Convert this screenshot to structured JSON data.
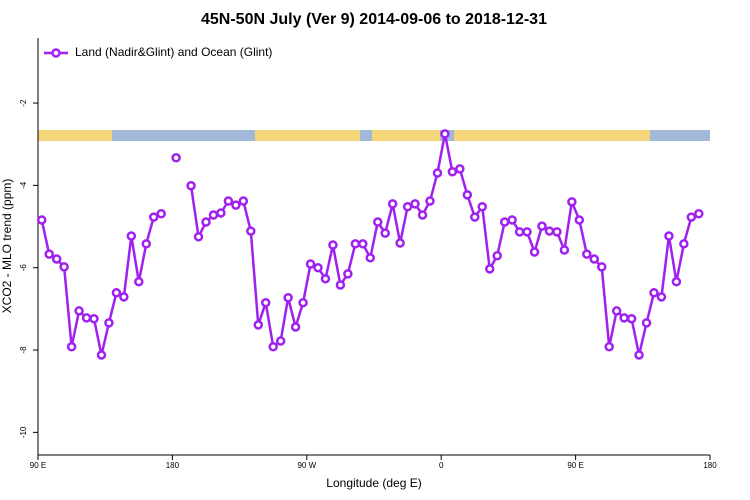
{
  "chart_data": {
    "type": "line",
    "title": "45N-50N July (Ver 9)   2014-09-06 to 2018-12-31",
    "x_label": "Longitude (deg E)",
    "y_label": "XCO2 - MLO trend (ppm)",
    "x": [
      92.5,
      97.5,
      102.5,
      107.5,
      112.5,
      117.5,
      122.5,
      127.5,
      132.5,
      137.5,
      142.5,
      147.5,
      152.5,
      157.5,
      162.5,
      167.5,
      172.5,
      177.5,
      182.5,
      187.5,
      192.5,
      197.5,
      202.5,
      207.5,
      212.5,
      217.5,
      222.5,
      227.5,
      232.5,
      237.5,
      242.5,
      247.5,
      252.5,
      257.5,
      262.5,
      267.5,
      272.5,
      277.5,
      282.5,
      287.5,
      292.5,
      297.5,
      302.5,
      307.5,
      312.5,
      317.5,
      322.5,
      327.5,
      332.5,
      337.5,
      342.5,
      347.5,
      352.5,
      357.5,
      362.5,
      367.5,
      372.5,
      377.5,
      382.5,
      387.5,
      392.5,
      397.5,
      402.5,
      407.5,
      412.5,
      417.5,
      422.5,
      427.5,
      432.5,
      437.5,
      442.5,
      447.5,
      452.5,
      457.5,
      462.5,
      467.5,
      472.5,
      477.5,
      482.5,
      487.5,
      492.5,
      497.5,
      502.5,
      507.5,
      512.5,
      517.5,
      522.5,
      527.5,
      532.5
    ],
    "series": [
      {
        "name": "Land (Nadir&Glint) and Ocean (Glint)",
        "color": "#a020f0",
        "values": [
          -4.84,
          -5.67,
          -5.79,
          -5.98,
          -7.92,
          -7.05,
          -7.22,
          -7.24,
          -8.12,
          -7.34,
          -6.61,
          -6.71,
          -5.23,
          -6.34,
          -5.42,
          -4.77,
          -4.69,
          null,
          -3.33,
          null,
          -4.01,
          -5.25,
          -4.89,
          -4.72,
          -4.67,
          -4.38,
          -4.48,
          -4.38,
          -5.11,
          -7.39,
          -6.85,
          -7.92,
          -7.78,
          -6.73,
          -7.44,
          -6.85,
          -5.91,
          -6.0,
          -6.27,
          -5.45,
          -6.42,
          -6.15,
          -5.42,
          -5.42,
          -5.76,
          -4.89,
          -5.16,
          -4.45,
          -5.4,
          -4.52,
          -4.45,
          -4.72,
          -4.38,
          -3.7,
          -2.75,
          -3.67,
          -3.6,
          -4.23,
          -4.77,
          -4.52,
          -6.03,
          -5.71,
          -4.89,
          -4.84,
          -5.13,
          -5.13,
          -5.62,
          -4.99,
          -5.11,
          -5.13,
          -5.57,
          -4.4,
          -4.84,
          -5.67,
          -5.79,
          -5.98,
          -7.92,
          -7.05,
          -7.22,
          -7.24,
          -8.12,
          -7.34,
          -6.61,
          -6.71,
          -5.23,
          -6.34,
          -5.42,
          -4.77,
          -4.69
        ]
      }
    ],
    "xlim": [
      90,
      540
    ],
    "xticks": [
      {
        "value": 90,
        "label": "90 E"
      },
      180,
      {
        "value": 270,
        "label": "90 W"
      },
      {
        "value": 360,
        "label": "0"
      },
      {
        "value": 450,
        "label": "90 E"
      },
      {
        "value": 540,
        "label": "180"
      }
    ],
    "ylim": [
      -10.55,
      -0.42
    ],
    "yticks": [
      -2,
      -4,
      -6,
      -8,
      -10
    ],
    "legend": "top-left"
  }
}
